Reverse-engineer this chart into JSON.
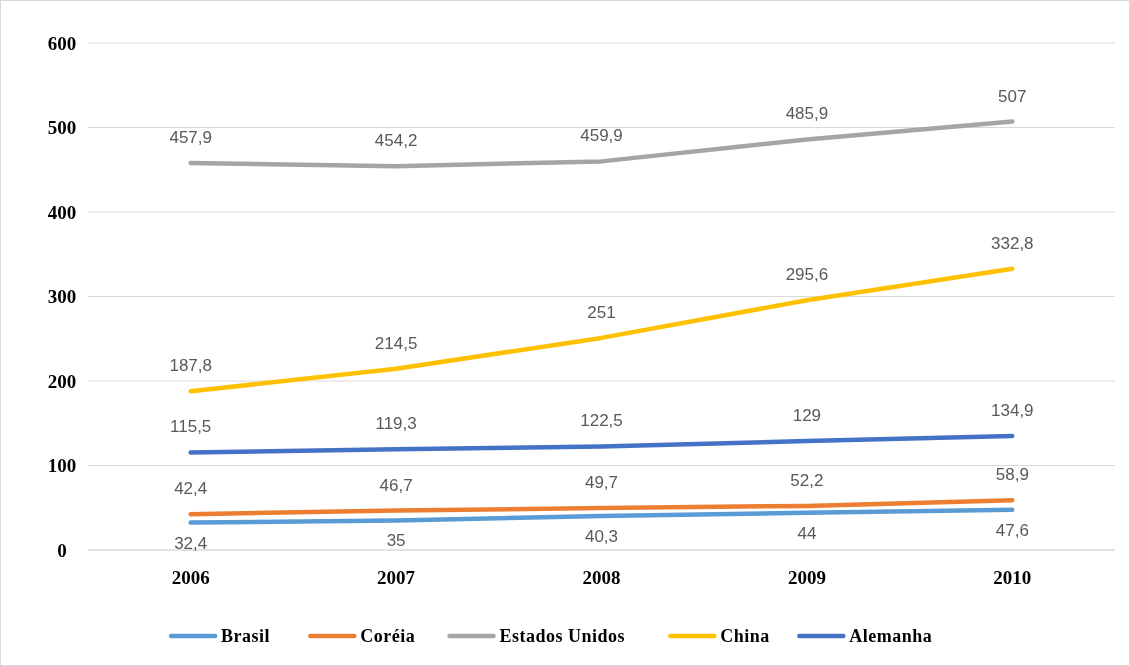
{
  "chart_data": {
    "type": "line",
    "categories": [
      "2006",
      "2007",
      "2008",
      "2009",
      "2010"
    ],
    "series": [
      {
        "name": "Brasil",
        "color": "#5b9bd5",
        "values": [
          32.4,
          35,
          40.3,
          44,
          47.6
        ],
        "value_labels": [
          "32,4",
          "35",
          "40,3",
          "44",
          "47,6"
        ]
      },
      {
        "name": "Coréia",
        "color": "#ed7d31",
        "values": [
          42.4,
          46.7,
          49.7,
          52.2,
          58.9
        ],
        "value_labels": [
          "42,4",
          "46,7",
          "49,7",
          "52,2",
          "58,9"
        ]
      },
      {
        "name": "Estados Unidos",
        "color": "#a5a5a5",
        "values": [
          457.9,
          454.2,
          459.9,
          485.9,
          507
        ],
        "value_labels": [
          "457,9",
          "454,2",
          "459,9",
          "485,9",
          "507"
        ]
      },
      {
        "name": "China",
        "color": "#ffc000",
        "values": [
          187.8,
          214.5,
          251,
          295.6,
          332.8
        ],
        "value_labels": [
          "187,8",
          "214,5",
          "251",
          "295,6",
          "332,8"
        ]
      },
      {
        "name": "Alemanha",
        "color": "#4472c4",
        "values": [
          115.5,
          119.3,
          122.5,
          129,
          134.9
        ],
        "value_labels": [
          "115,5",
          "119,3",
          "122,5",
          "129",
          "134,9"
        ]
      }
    ],
    "ylim": [
      0,
      600
    ],
    "yticks": [
      0,
      100,
      200,
      300,
      400,
      500,
      600
    ],
    "grid": "y",
    "legend": "bottom",
    "marker": "none",
    "line_style": "solid"
  }
}
